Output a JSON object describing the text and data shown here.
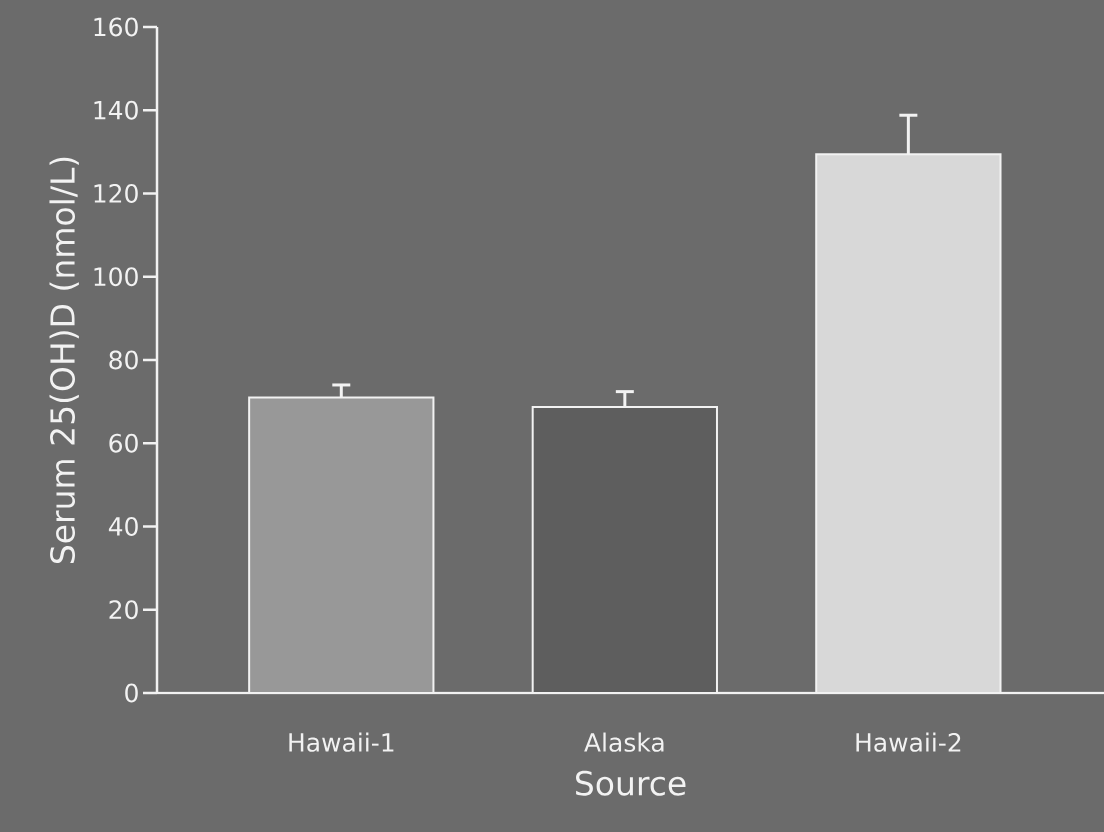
{
  "chart_data": {
    "type": "bar",
    "xlabel": "Source",
    "ylabel": "Serum 25(OH)D (nmol/L)",
    "categories": [
      "Hawaii-1",
      "Alaska",
      "Hawaii-2"
    ],
    "values": [
      71,
      68.7,
      129.4
    ],
    "errors": [
      3,
      3.7,
      9.4
    ],
    "colors": [
      "#989898",
      "#5e5e5e",
      "#d8d8d8"
    ],
    "ylim": [
      0,
      160
    ],
    "yticks": [
      0,
      20,
      40,
      60,
      80,
      100,
      120,
      140,
      160
    ]
  }
}
